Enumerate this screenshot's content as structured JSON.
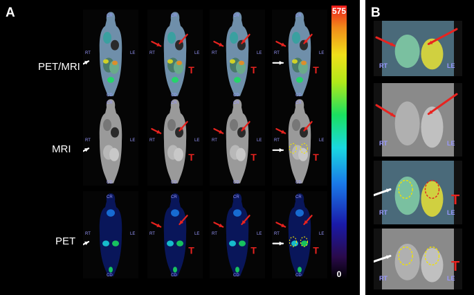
{
  "figure": {
    "panel_a_label": "A",
    "panel_b_label": "B",
    "row_labels": [
      "PET/MRI",
      "MRI",
      "PET"
    ],
    "colorbar": {
      "max": "575",
      "min": "0"
    },
    "orientation_labels": {
      "top": "CR",
      "bottom": "CD",
      "right": "RT",
      "left": "LE"
    },
    "tumor_marker": "T",
    "colors": {
      "arrow_red": "#e8231f",
      "arrow_white": "#ffffff",
      "roi_yellow": "#f2e400",
      "roi_red": "#e02020",
      "label_text": "#9999ff"
    }
  }
}
